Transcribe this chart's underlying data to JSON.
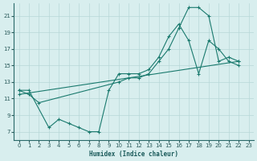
{
  "xlabel": "Humidex (Indice chaleur)",
  "bg_color": "#d8eeee",
  "line_color": "#1a7a6e",
  "xlim": [
    -0.5,
    23.5
  ],
  "ylim": [
    6,
    22.5
  ],
  "yticks": [
    7,
    9,
    11,
    13,
    15,
    17,
    19,
    21
  ],
  "xticks": [
    0,
    1,
    2,
    3,
    4,
    5,
    6,
    7,
    8,
    9,
    10,
    11,
    12,
    13,
    14,
    15,
    16,
    17,
    18,
    19,
    20,
    21,
    22,
    23
  ],
  "series": [
    {
      "x": [
        0,
        1,
        2,
        10,
        11,
        12,
        13,
        14,
        15,
        16,
        17,
        18,
        19,
        20,
        21,
        22
      ],
      "y": [
        12,
        11.5,
        10.5,
        13,
        13.5,
        13.5,
        14,
        15.5,
        17,
        19.5,
        22,
        22,
        21,
        15.5,
        16,
        15.5
      ]
    },
    {
      "x": [
        0,
        1,
        3,
        4,
        5,
        6,
        7,
        8,
        9,
        10,
        11,
        12,
        13,
        14,
        15,
        16,
        17,
        18,
        19,
        20,
        21,
        22
      ],
      "y": [
        12,
        12,
        7.5,
        8.5,
        8,
        7.5,
        7,
        7,
        12,
        14,
        14,
        14,
        14.5,
        16,
        18.5,
        20,
        18,
        14,
        18,
        17,
        15.5,
        15
      ]
    },
    {
      "x": [
        0,
        22
      ],
      "y": [
        11.5,
        15.5
      ]
    }
  ]
}
